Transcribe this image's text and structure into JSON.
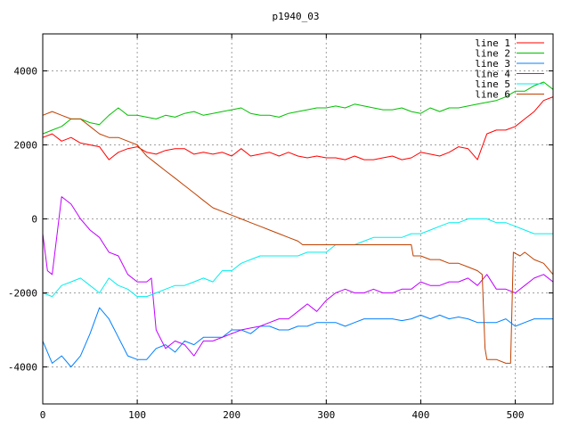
{
  "chart_data": {
    "type": "line",
    "title": "p1940_03",
    "xlabel": "",
    "ylabel": "",
    "xlim": [
      0,
      540
    ],
    "ylim": [
      -5000,
      5000
    ],
    "xticks": [
      0,
      100,
      200,
      300,
      400,
      500
    ],
    "yticks": [
      -4000,
      -2000,
      0,
      2000,
      4000
    ],
    "grid": true,
    "legend_position": "top-right",
    "colors": {
      "line 1": "#ff0000",
      "line 2": "#00c000",
      "line 3": "#0080ff",
      "line 4": "#c000ff",
      "line 5": "#00eeee",
      "line 6": "#c04000"
    },
    "series": [
      {
        "name": "line 1",
        "x": [
          0,
          10,
          20,
          30,
          40,
          50,
          60,
          70,
          80,
          90,
          100,
          110,
          120,
          130,
          140,
          150,
          160,
          170,
          180,
          190,
          200,
          210,
          220,
          230,
          240,
          250,
          260,
          270,
          280,
          290,
          300,
          310,
          320,
          330,
          340,
          350,
          360,
          370,
          380,
          390,
          400,
          410,
          420,
          430,
          440,
          450,
          460,
          470,
          480,
          490,
          500,
          510,
          520,
          530,
          540
        ],
        "y": [
          2200,
          2300,
          2100,
          2200,
          2050,
          2000,
          1950,
          1600,
          1800,
          1900,
          1950,
          1800,
          1750,
          1850,
          1900,
          1900,
          1750,
          1800,
          1750,
          1800,
          1700,
          1900,
          1700,
          1750,
          1800,
          1700,
          1800,
          1700,
          1650,
          1700,
          1650,
          1650,
          1600,
          1700,
          1600,
          1600,
          1650,
          1700,
          1600,
          1650,
          1800,
          1750,
          1700,
          1800,
          1950,
          1900,
          1600,
          2300,
          2400,
          2400,
          2500,
          2700,
          2900,
          3200,
          3300
        ]
      },
      {
        "name": "line 2",
        "x": [
          0,
          10,
          20,
          30,
          40,
          50,
          60,
          70,
          80,
          90,
          100,
          110,
          120,
          130,
          140,
          150,
          160,
          170,
          180,
          190,
          200,
          210,
          220,
          230,
          240,
          250,
          260,
          270,
          280,
          290,
          300,
          310,
          320,
          330,
          340,
          350,
          360,
          370,
          380,
          390,
          400,
          410,
          420,
          430,
          440,
          450,
          460,
          470,
          480,
          490,
          500,
          510,
          520,
          530,
          540
        ],
        "y": [
          2300,
          2400,
          2500,
          2700,
          2700,
          2600,
          2550,
          2800,
          3000,
          2800,
          2800,
          2750,
          2700,
          2800,
          2750,
          2850,
          2900,
          2800,
          2850,
          2900,
          2950,
          3000,
          2850,
          2800,
          2800,
          2750,
          2850,
          2900,
          2950,
          3000,
          3000,
          3050,
          3000,
          3100,
          3050,
          3000,
          2950,
          2950,
          3000,
          2900,
          2850,
          3000,
          2900,
          3000,
          3000,
          3050,
          3100,
          3150,
          3200,
          3300,
          3450,
          3450,
          3600,
          3700,
          3500
        ]
      },
      {
        "name": "line 3",
        "x": [
          0,
          10,
          20,
          30,
          40,
          50,
          60,
          70,
          80,
          90,
          100,
          110,
          120,
          130,
          140,
          150,
          160,
          170,
          180,
          190,
          200,
          210,
          220,
          230,
          240,
          250,
          260,
          270,
          280,
          290,
          300,
          310,
          320,
          330,
          340,
          350,
          360,
          370,
          380,
          390,
          400,
          410,
          420,
          430,
          440,
          450,
          460,
          470,
          480,
          490,
          500,
          510,
          520,
          530,
          540
        ],
        "y": [
          -3300,
          -3900,
          -3700,
          -4000,
          -3700,
          -3100,
          -2400,
          -2700,
          -3200,
          -3700,
          -3800,
          -3800,
          -3500,
          -3400,
          -3600,
          -3300,
          -3400,
          -3200,
          -3200,
          -3200,
          -3000,
          -3000,
          -3100,
          -2900,
          -2900,
          -3000,
          -3000,
          -2900,
          -2900,
          -2800,
          -2800,
          -2800,
          -2900,
          -2800,
          -2700,
          -2700,
          -2700,
          -2700,
          -2750,
          -2700,
          -2600,
          -2700,
          -2600,
          -2700,
          -2650,
          -2700,
          -2800,
          -2800,
          -2800,
          -2700,
          -2900,
          -2800,
          -2700,
          -2700,
          -2700
        ]
      },
      {
        "name": "line 4",
        "x": [
          0,
          5,
          10,
          20,
          30,
          40,
          50,
          60,
          70,
          80,
          90,
          100,
          110,
          115,
          120,
          130,
          140,
          150,
          160,
          170,
          180,
          190,
          200,
          210,
          220,
          230,
          240,
          250,
          260,
          270,
          280,
          290,
          300,
          310,
          320,
          330,
          340,
          350,
          360,
          370,
          380,
          390,
          400,
          410,
          420,
          430,
          440,
          450,
          460,
          470,
          480,
          490,
          500,
          510,
          520,
          530,
          540
        ],
        "y": [
          -400,
          -1400,
          -1500,
          600,
          400,
          0,
          -300,
          -500,
          -900,
          -1000,
          -1500,
          -1700,
          -1700,
          -1600,
          -3000,
          -3500,
          -3300,
          -3400,
          -3700,
          -3300,
          -3300,
          -3200,
          -3100,
          -3000,
          -2950,
          -2900,
          -2800,
          -2700,
          -2700,
          -2500,
          -2300,
          -2500,
          -2200,
          -2000,
          -1900,
          -2000,
          -2000,
          -1900,
          -2000,
          -2000,
          -1900,
          -1900,
          -1700,
          -1800,
          -1800,
          -1700,
          -1700,
          -1600,
          -1800,
          -1500,
          -1900,
          -1900,
          -2000,
          -1800,
          -1600,
          -1500,
          -1700
        ]
      },
      {
        "name": "line 5",
        "x": [
          0,
          10,
          20,
          30,
          40,
          50,
          60,
          70,
          80,
          90,
          100,
          110,
          120,
          130,
          140,
          150,
          160,
          170,
          180,
          190,
          200,
          210,
          220,
          230,
          240,
          250,
          260,
          270,
          280,
          290,
          300,
          310,
          320,
          330,
          340,
          350,
          360,
          370,
          380,
          390,
          400,
          410,
          420,
          430,
          440,
          450,
          460,
          470,
          480,
          490,
          500,
          510,
          520,
          530,
          540
        ],
        "y": [
          -2000,
          -2100,
          -1800,
          -1700,
          -1600,
          -1800,
          -2000,
          -1600,
          -1800,
          -1900,
          -2100,
          -2100,
          -2000,
          -1900,
          -1800,
          -1800,
          -1700,
          -1600,
          -1700,
          -1400,
          -1400,
          -1200,
          -1100,
          -1000,
          -1000,
          -1000,
          -1000,
          -1000,
          -900,
          -900,
          -900,
          -700,
          -700,
          -700,
          -600,
          -500,
          -500,
          -500,
          -500,
          -400,
          -400,
          -300,
          -200,
          -100,
          -100,
          0,
          0,
          0,
          -100,
          -100,
          -200,
          -300,
          -400,
          -400,
          -400
        ]
      },
      {
        "name": "line 6",
        "x": [
          0,
          10,
          20,
          30,
          40,
          50,
          60,
          70,
          80,
          90,
          100,
          110,
          120,
          130,
          140,
          150,
          160,
          170,
          180,
          190,
          200,
          210,
          220,
          230,
          240,
          250,
          260,
          270,
          275,
          390,
          392,
          400,
          410,
          420,
          430,
          440,
          450,
          460,
          465,
          468,
          470,
          480,
          490,
          495,
          498,
          505,
          510,
          520,
          530,
          540
        ],
        "y": [
          2800,
          2900,
          2800,
          2700,
          2700,
          2500,
          2300,
          2200,
          2200,
          2100,
          2000,
          1700,
          1500,
          1300,
          1100,
          900,
          700,
          500,
          300,
          200,
          100,
          0,
          -100,
          -200,
          -300,
          -400,
          -500,
          -600,
          -700,
          -700,
          -1000,
          -1000,
          -1100,
          -1100,
          -1200,
          -1200,
          -1300,
          -1400,
          -1500,
          -3500,
          -3800,
          -3800,
          -3900,
          -3900,
          -900,
          -1000,
          -900,
          -1100,
          -1200,
          -1500
        ]
      }
    ]
  }
}
